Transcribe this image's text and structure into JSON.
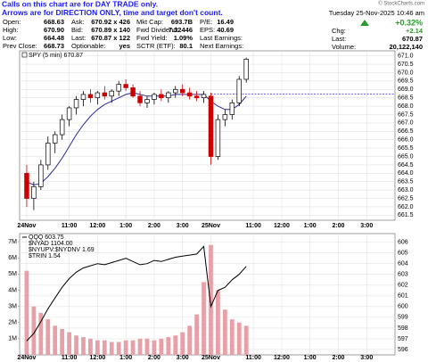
{
  "header": {
    "copyright": "© StockCharts.com",
    "note": [
      "Calls on this chart are for DAY TRADE only.",
      "Arrows are for DIRECTION ONLY, time and target don't count."
    ],
    "quote": [
      [
        [
          "Open:",
          "668.63"
        ],
        [
          "High:",
          "670.90"
        ],
        [
          "Low:",
          "664.48"
        ],
        [
          "Prev Close:",
          "668.73"
        ]
      ],
      [
        [
          "Ask:",
          "670.92 x 426"
        ],
        [
          "Bid:",
          "670.89 x 140"
        ],
        [
          "Last:",
          "670.87 x 122"
        ],
        [
          "Optionable:",
          "yes"
        ]
      ],
      [
        [
          "Mkt Cap:",
          "693.7B"
        ],
        [
          "Fwd Dividend:",
          "7.32446"
        ],
        [
          "Fwd Yield:",
          "1.09%"
        ],
        [
          "SCTR (ETF):",
          "80.1"
        ]
      ],
      [
        [
          "P/E:",
          "16.49"
        ],
        [
          "EPS:",
          "40.69"
        ],
        [
          "Last Earnings:",
          ""
        ],
        [
          "Next Earnings:",
          ""
        ]
      ]
    ],
    "date": "Tuesday 25-Nov-2025 10:46 am",
    "change_pct": "+0.32%",
    "stats": [
      [
        "Chg:",
        "+2.14"
      ],
      [
        "Last:",
        "670.87"
      ],
      [
        "Volume:",
        "20,122,140"
      ]
    ]
  },
  "chart_data": [
    {
      "type": "candlestick",
      "title": "SPY (5 min) 670.87",
      "x": [
        0,
        3,
        6,
        9,
        12,
        15,
        18,
        21,
        24,
        27,
        30,
        33,
        36,
        39,
        42,
        45,
        48,
        51,
        54,
        57,
        60,
        63,
        66,
        69,
        72,
        75,
        78,
        81,
        84,
        87,
        90,
        93
      ],
      "open": [
        664.0,
        662.5,
        663.2,
        664.5,
        665.8,
        666.3,
        667.2,
        667.9,
        668.4,
        668.7,
        668.5,
        668.8,
        668.6,
        668.9,
        669.3,
        669.1,
        668.6,
        668.2,
        668.4,
        668.7,
        668.5,
        668.8,
        669.0,
        668.8,
        668.6,
        668.5,
        668.6,
        665.0,
        667.2,
        667.5,
        668.2,
        669.6
      ],
      "high": [
        664.5,
        663.5,
        664.8,
        666.2,
        666.5,
        667.5,
        668.0,
        668.6,
        668.9,
        669.0,
        668.9,
        669.2,
        669.0,
        669.5,
        669.6,
        669.3,
        668.9,
        668.6,
        668.8,
        669.0,
        668.9,
        669.2,
        669.3,
        669.1,
        668.9,
        668.9,
        668.8,
        667.5,
        667.8,
        668.4,
        669.8,
        670.9
      ],
      "low": [
        662.0,
        661.8,
        663.0,
        664.2,
        665.2,
        666.0,
        666.8,
        667.5,
        668.0,
        668.2,
        668.1,
        668.4,
        668.2,
        668.6,
        668.9,
        668.5,
        668.0,
        667.9,
        668.1,
        668.3,
        668.2,
        668.5,
        668.6,
        668.4,
        668.3,
        668.2,
        664.5,
        664.8,
        666.8,
        667.2,
        668.0,
        669.4
      ],
      "close": [
        662.5,
        663.2,
        664.5,
        665.8,
        666.3,
        667.2,
        667.9,
        668.4,
        668.7,
        668.5,
        668.8,
        668.6,
        668.9,
        669.3,
        669.1,
        668.6,
        668.2,
        668.4,
        668.7,
        668.5,
        668.8,
        669.0,
        668.8,
        668.6,
        668.5,
        668.7,
        665.0,
        667.2,
        667.5,
        668.2,
        669.6,
        670.8
      ],
      "up_color": "#000000",
      "down_color": "#cc0000",
      "overlay": {
        "color": "#2b2b9a",
        "values": [
          663.5,
          663.3,
          663.4,
          663.8,
          664.3,
          664.9,
          665.6,
          666.3,
          666.9,
          667.4,
          667.8,
          668.1,
          668.3,
          668.5,
          668.7,
          668.8,
          668.7,
          668.6,
          668.6,
          668.6,
          668.6,
          668.7,
          668.7,
          668.7,
          668.7,
          668.7,
          668.3,
          668.0,
          667.8,
          667.8,
          668.1,
          668.6
        ]
      },
      "reference_line": 668.73,
      "reference_color": "#3333ff",
      "xlim": [
        -3,
        156
      ],
      "ylim": [
        661.2,
        671.3
      ],
      "yticks": [
        661.5,
        {
          "value": 662,
          "label": "662.0"
        },
        662.5,
        {
          "value": 663,
          "label": "663.0"
        },
        663.5,
        {
          "value": 664,
          "label": "664.0"
        },
        664.5,
        {
          "value": 665,
          "label": "665.0"
        },
        665.5,
        {
          "value": 666,
          "label": "666.0"
        },
        666.5,
        {
          "value": 667,
          "label": "667.0"
        },
        667.5,
        {
          "value": 668,
          "label": "668.0"
        },
        668.5,
        {
          "value": 669,
          "label": "669.0"
        },
        669.5,
        {
          "value": 670,
          "label": "670.0"
        },
        670.5,
        {
          "value": 671,
          "label": "671.0"
        }
      ],
      "xticks": [
        {
          "value": 0,
          "label": "24Nov"
        },
        {
          "value": 18,
          "label": "11:00"
        },
        {
          "value": 30,
          "label": "12:00"
        },
        {
          "value": 42,
          "label": "1:00"
        },
        {
          "value": 54,
          "label": "2:00"
        },
        {
          "value": 66,
          "label": "3:00"
        },
        {
          "value": 78,
          "label": "25Nov"
        },
        {
          "value": 96,
          "label": "11:00"
        },
        {
          "value": 108,
          "label": "12:00"
        },
        {
          "value": 120,
          "label": "1:00"
        },
        {
          "value": 132,
          "label": "2:00"
        },
        {
          "value": 144,
          "label": "3:00"
        }
      ],
      "grid": true
    },
    {
      "type": "line",
      "x": [
        0,
        3,
        6,
        9,
        12,
        15,
        18,
        21,
        24,
        27,
        30,
        33,
        36,
        39,
        42,
        45,
        48,
        51,
        54,
        57,
        60,
        63,
        66,
        69,
        72,
        75,
        78,
        81,
        84,
        87,
        90,
        93
      ],
      "series": [
        {
          "name": "QQQ 603.75",
          "color": "#000000",
          "values": [
            596.8,
            597.5,
            598.6,
            599.8,
            600.8,
            601.8,
            602.6,
            603.2,
            603.6,
            603.8,
            604.0,
            603.9,
            604.1,
            604.3,
            604.5,
            604.2,
            603.9,
            604.0,
            604.3,
            604.2,
            604.4,
            604.6,
            604.7,
            604.8,
            604.9,
            605.6,
            600.0,
            601.5,
            601.8,
            602.5,
            603.0,
            603.75
          ]
        },
        {
          "color": "#e8a0a8",
          "axis": "y2",
          "values": [
            5200000,
            3000000,
            2600000,
            2200000,
            1800000,
            1600000,
            1400000,
            1200000,
            1100000,
            1000000,
            900000,
            900000,
            800000,
            800000,
            900000,
            900000,
            1000000,
            1000000,
            900000,
            1000000,
            1100000,
            1200000,
            1400000,
            1800000,
            2500000,
            4500000,
            6800000,
            4000000,
            2800000,
            2200000,
            2000000,
            1800000
          ]
        }
      ],
      "legend_extra": [
        "$NYAD 1104.00",
        "$NYUPV:$NYDNV 1.69",
        "$TRIN 1.54"
      ],
      "xlim": [
        -3,
        156
      ],
      "ylim": [
        595.5,
        606.8
      ],
      "yticks": [
        596,
        597,
        598,
        599,
        600,
        601,
        602,
        603,
        604,
        605,
        606
      ],
      "y2lim": [
        0,
        7500000
      ],
      "y2ticks": [
        {
          "value": 1000000,
          "label": "1M"
        },
        {
          "value": 2000000,
          "label": "2M"
        },
        {
          "value": 3000000,
          "label": "3M"
        },
        {
          "value": 4000000,
          "label": "4M"
        },
        {
          "value": 5000000,
          "label": "5M"
        },
        {
          "value": 6000000,
          "label": "6M"
        },
        {
          "value": 7000000,
          "label": "7M"
        }
      ],
      "xticks": [
        {
          "value": 0,
          "label": "24Nov"
        },
        {
          "value": 18,
          "label": "11:00"
        },
        {
          "value": 30,
          "label": "12:00"
        },
        {
          "value": 42,
          "label": "1:00"
        },
        {
          "value": 54,
          "label": "2:00"
        },
        {
          "value": 66,
          "label": "3:00"
        },
        {
          "value": 78,
          "label": "25Nov"
        },
        {
          "value": 96,
          "label": "11:00"
        },
        {
          "value": 108,
          "label": "12:00"
        },
        {
          "value": 120,
          "label": "1:00"
        },
        {
          "value": 132,
          "label": "2:00"
        },
        {
          "value": 144,
          "label": "3:00"
        }
      ],
      "grid": true
    }
  ]
}
